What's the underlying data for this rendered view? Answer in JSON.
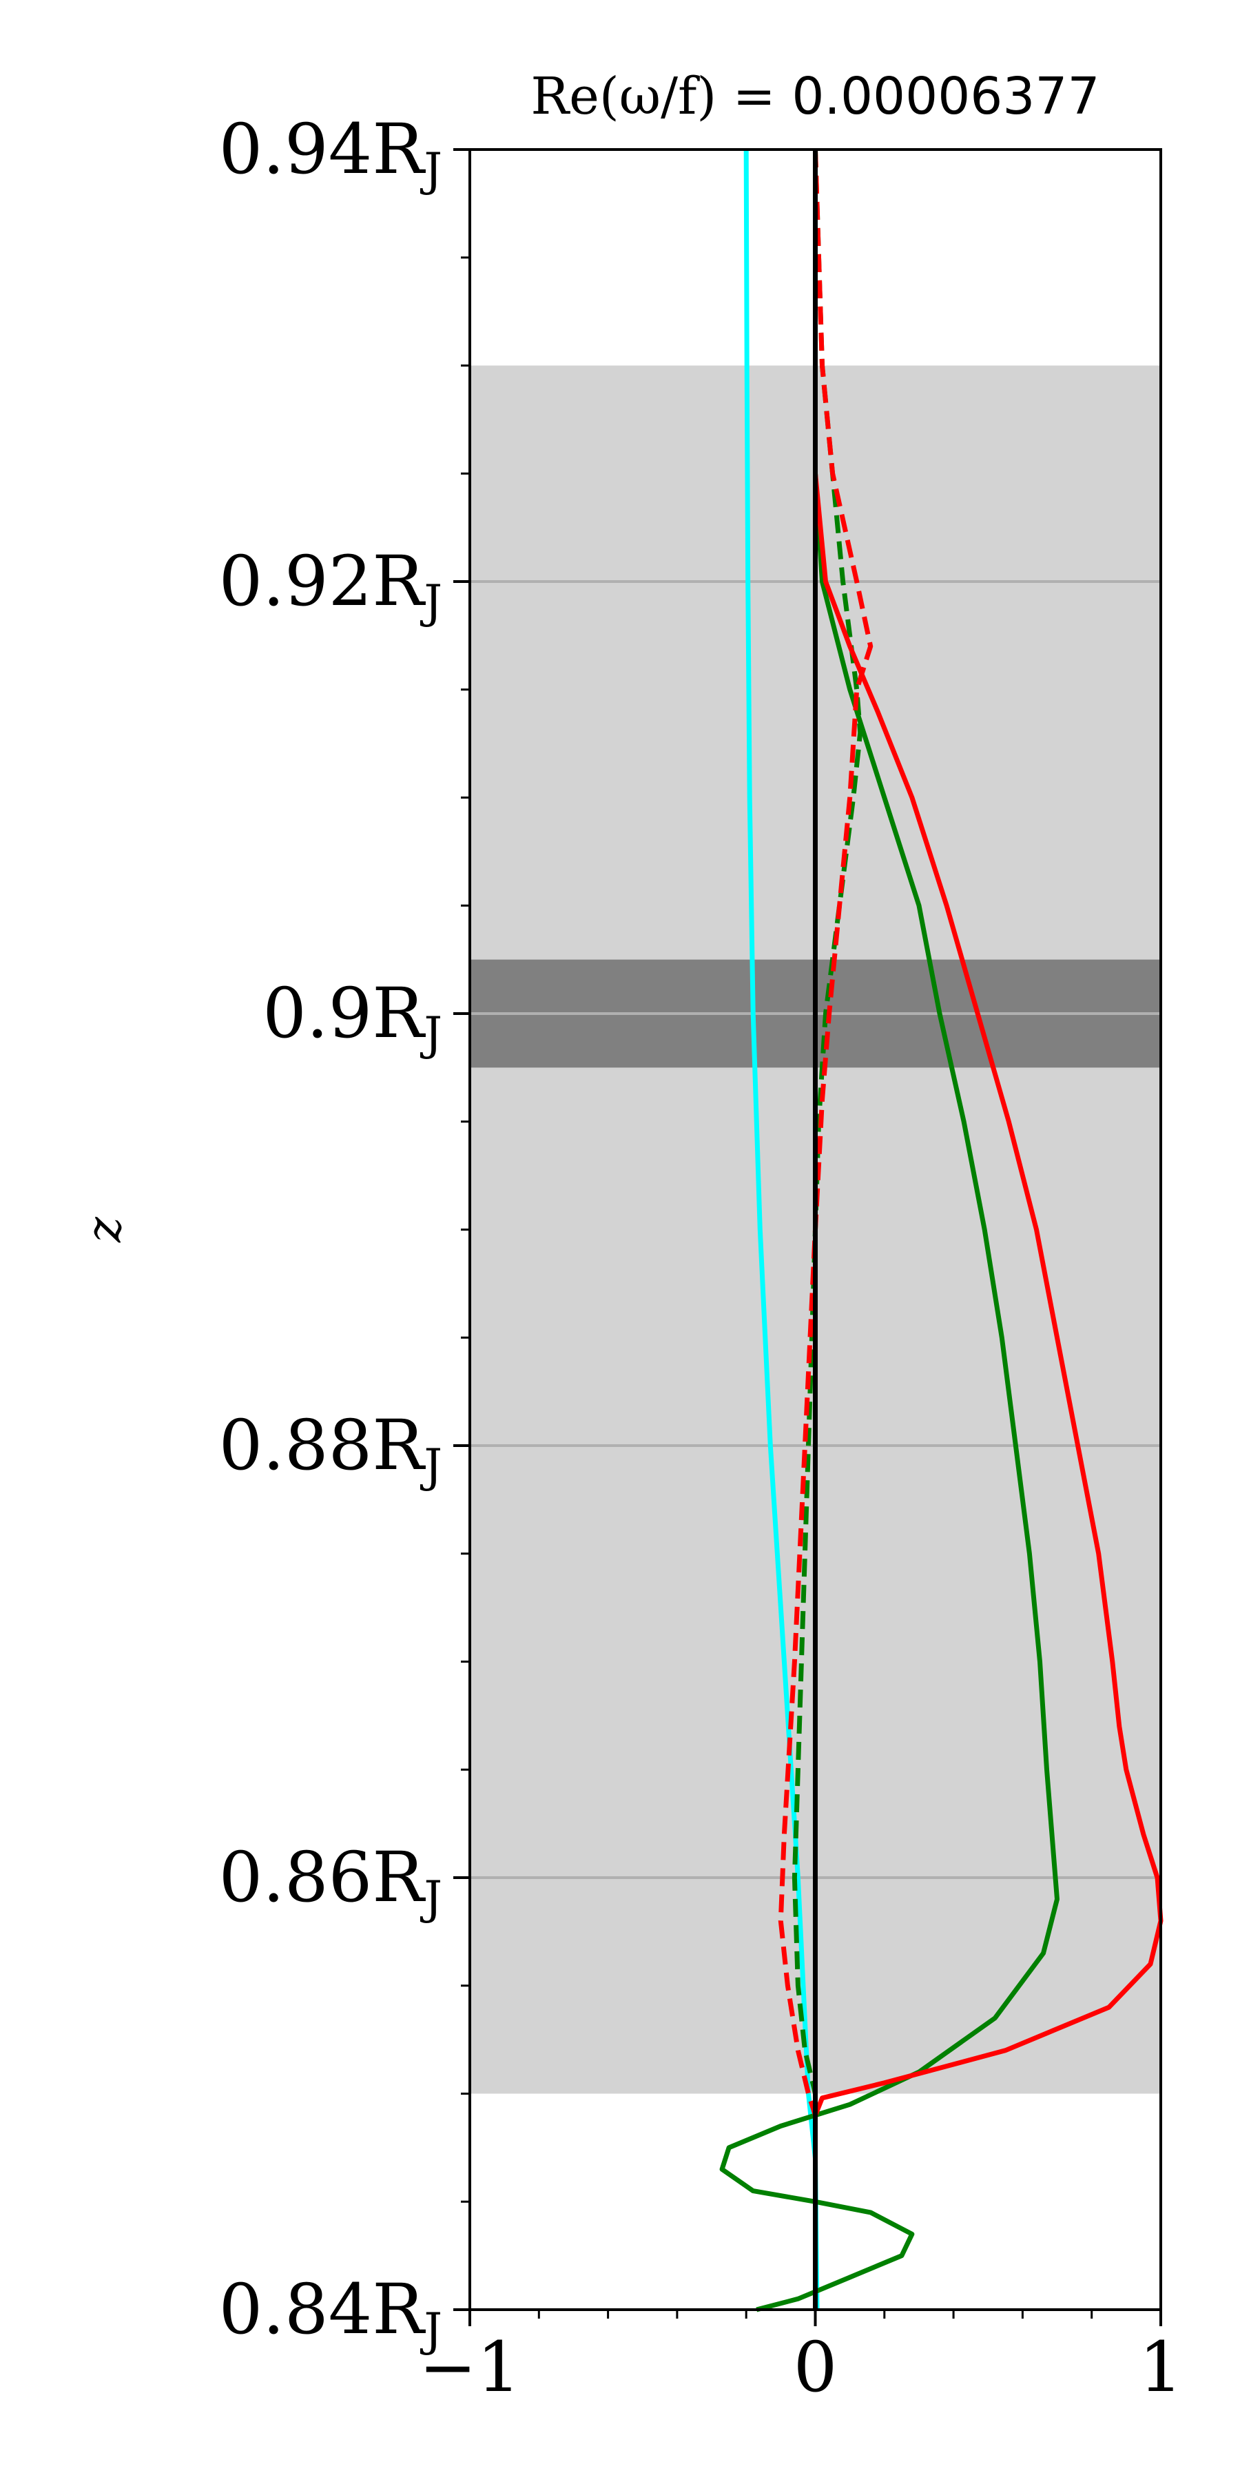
{
  "chart_data": {
    "type": "line",
    "title": {
      "prefix": "Re(ω/f) = ",
      "value": "0.00006377"
    },
    "xlabel": "",
    "ylabel": "z",
    "xlim": [
      -1,
      1
    ],
    "ylim": [
      0.84,
      0.94
    ],
    "xticks": [
      -1,
      0,
      1
    ],
    "xtick_labels": [
      "−1",
      "0",
      "1"
    ],
    "yticks": [
      0.84,
      0.86,
      0.88,
      0.9,
      0.92,
      0.94
    ],
    "ytick_labels": [
      "0.84R",
      "0.86R",
      "0.88R",
      "0.9R",
      "0.92R",
      "0.94R"
    ],
    "ytick_subscript": "J",
    "x_minor_step": 0.2,
    "y_minor_step": 0.005,
    "hgrid": [
      0.86,
      0.88,
      0.9,
      0.92
    ],
    "bands": [
      {
        "y0": 0.85,
        "y1": 0.93,
        "color": "#d3d3d3"
      },
      {
        "y0": 0.8975,
        "y1": 0.9025,
        "color": "#808080"
      }
    ],
    "series": [
      {
        "color": "#00ffff",
        "dash": "solid",
        "points": [
          [
            -0.2,
            0.94
          ],
          [
            -0.198,
            0.93
          ],
          [
            -0.195,
            0.92
          ],
          [
            -0.19,
            0.91
          ],
          [
            -0.18,
            0.9
          ],
          [
            -0.16,
            0.89
          ],
          [
            -0.13,
            0.88
          ],
          [
            -0.09,
            0.87
          ],
          [
            -0.05,
            0.86
          ],
          [
            -0.02,
            0.85
          ],
          [
            0.0,
            0.847
          ],
          [
            0.005,
            0.84
          ]
        ]
      },
      {
        "color": "#008000",
        "dash": "solid",
        "points": [
          [
            0.0,
            0.94
          ],
          [
            0.0,
            0.925
          ],
          [
            0.02,
            0.92
          ],
          [
            0.1,
            0.915
          ],
          [
            0.2,
            0.91
          ],
          [
            0.3,
            0.905
          ],
          [
            0.36,
            0.9
          ],
          [
            0.43,
            0.895
          ],
          [
            0.49,
            0.89
          ],
          [
            0.54,
            0.885
          ],
          [
            0.58,
            0.88
          ],
          [
            0.62,
            0.875
          ],
          [
            0.65,
            0.87
          ],
          [
            0.67,
            0.865
          ],
          [
            0.69,
            0.861
          ],
          [
            0.7,
            0.859
          ],
          [
            0.66,
            0.8565
          ],
          [
            0.52,
            0.8535
          ],
          [
            0.3,
            0.851
          ],
          [
            0.1,
            0.8495
          ],
          [
            -0.1,
            0.8485
          ],
          [
            -0.25,
            0.8475
          ],
          [
            -0.27,
            0.8465
          ],
          [
            -0.18,
            0.8455
          ],
          [
            0.0,
            0.845
          ],
          [
            0.16,
            0.8445
          ],
          [
            0.28,
            0.8435
          ],
          [
            0.25,
            0.8425
          ],
          [
            0.1,
            0.8415
          ],
          [
            -0.05,
            0.8405
          ],
          [
            -0.17,
            0.84
          ]
        ]
      },
      {
        "color": "#008000",
        "dash": "dashed",
        "points": [
          [
            0.0,
            0.94
          ],
          [
            0.02,
            0.93
          ],
          [
            0.08,
            0.92
          ],
          [
            0.12,
            0.915
          ],
          [
            0.13,
            0.913
          ],
          [
            0.11,
            0.91
          ],
          [
            0.07,
            0.905
          ],
          [
            0.03,
            0.9
          ],
          [
            0.01,
            0.895
          ],
          [
            0.0,
            0.89
          ],
          [
            -0.02,
            0.88
          ],
          [
            -0.04,
            0.87
          ],
          [
            -0.06,
            0.86
          ],
          [
            -0.05,
            0.855
          ],
          [
            -0.03,
            0.852
          ],
          [
            0.0,
            0.85
          ],
          [
            0.0,
            0.84
          ]
        ]
      },
      {
        "color": "#ff0000",
        "dash": "solid",
        "points": [
          [
            0.0,
            0.94
          ],
          [
            0.0,
            0.925
          ],
          [
            0.03,
            0.92
          ],
          [
            0.1,
            0.917
          ],
          [
            0.18,
            0.914
          ],
          [
            0.28,
            0.91
          ],
          [
            0.38,
            0.905
          ],
          [
            0.47,
            0.9
          ],
          [
            0.56,
            0.895
          ],
          [
            0.64,
            0.89
          ],
          [
            0.7,
            0.885
          ],
          [
            0.76,
            0.88
          ],
          [
            0.82,
            0.875
          ],
          [
            0.86,
            0.87
          ],
          [
            0.88,
            0.867
          ],
          [
            0.9,
            0.865
          ],
          [
            0.95,
            0.862
          ],
          [
            0.99,
            0.86
          ],
          [
            1.0,
            0.858
          ],
          [
            0.97,
            0.856
          ],
          [
            0.85,
            0.854
          ],
          [
            0.55,
            0.852
          ],
          [
            0.2,
            0.8505
          ],
          [
            0.02,
            0.8498
          ],
          [
            0.0,
            0.849
          ],
          [
            0.0,
            0.84
          ]
        ]
      },
      {
        "color": "#ff0000",
        "dash": "dashed",
        "points": [
          [
            0.0,
            0.94
          ],
          [
            0.02,
            0.93
          ],
          [
            0.05,
            0.925
          ],
          [
            0.12,
            0.92
          ],
          [
            0.16,
            0.917
          ],
          [
            0.12,
            0.915
          ],
          [
            0.1,
            0.91
          ],
          [
            0.07,
            0.905
          ],
          [
            0.04,
            0.9
          ],
          [
            0.02,
            0.896
          ],
          [
            0.01,
            0.893
          ],
          [
            0.0,
            0.89
          ],
          [
            -0.03,
            0.88
          ],
          [
            -0.06,
            0.87
          ],
          [
            -0.09,
            0.862
          ],
          [
            -0.1,
            0.858
          ],
          [
            -0.08,
            0.855
          ],
          [
            -0.05,
            0.852
          ],
          [
            -0.02,
            0.85
          ],
          [
            0.0,
            0.849
          ],
          [
            0.0,
            0.845
          ],
          [
            0.0,
            0.84
          ]
        ]
      },
      {
        "color": "#000000",
        "dash": "solid",
        "points": [
          [
            0.0,
            0.94
          ],
          [
            0.0,
            0.84
          ]
        ]
      }
    ]
  }
}
